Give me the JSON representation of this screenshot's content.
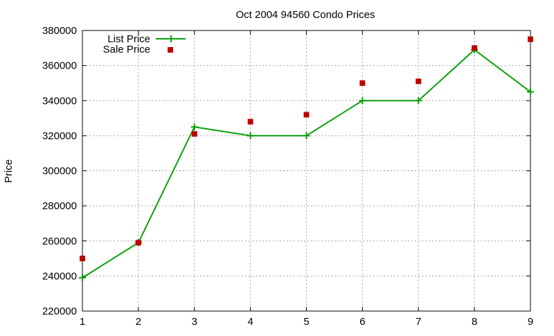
{
  "chart_data": {
    "type": "line",
    "title": "Oct 2004 94560 Condo Prices",
    "xlabel": "",
    "ylabel": "Price",
    "xlim": [
      1,
      9
    ],
    "ylim": [
      220000,
      380000
    ],
    "x_ticks": [
      "1",
      "2",
      "3",
      "4",
      "5",
      "6",
      "7",
      "8",
      "9"
    ],
    "y_ticks": [
      "220000",
      "240000",
      "260000",
      "280000",
      "300000",
      "320000",
      "340000",
      "360000",
      "380000"
    ],
    "grid": true,
    "legend_position": "top-left",
    "series": [
      {
        "name": "List Price",
        "style": "line-with-plus-markers",
        "color": "#0aa00a",
        "x": [
          1,
          2,
          3,
          4,
          5,
          6,
          7,
          8,
          9
        ],
        "values": [
          239000,
          259000,
          325000,
          320000,
          320000,
          340000,
          340000,
          369000,
          345000
        ]
      },
      {
        "name": "Sale Price",
        "style": "square-markers",
        "color": "#c00000",
        "x": [
          1,
          2,
          3,
          4,
          5,
          6,
          7,
          8,
          9
        ],
        "values": [
          250000,
          259000,
          321000,
          328000,
          332000,
          350000,
          351000,
          370000,
          375000
        ]
      }
    ]
  }
}
